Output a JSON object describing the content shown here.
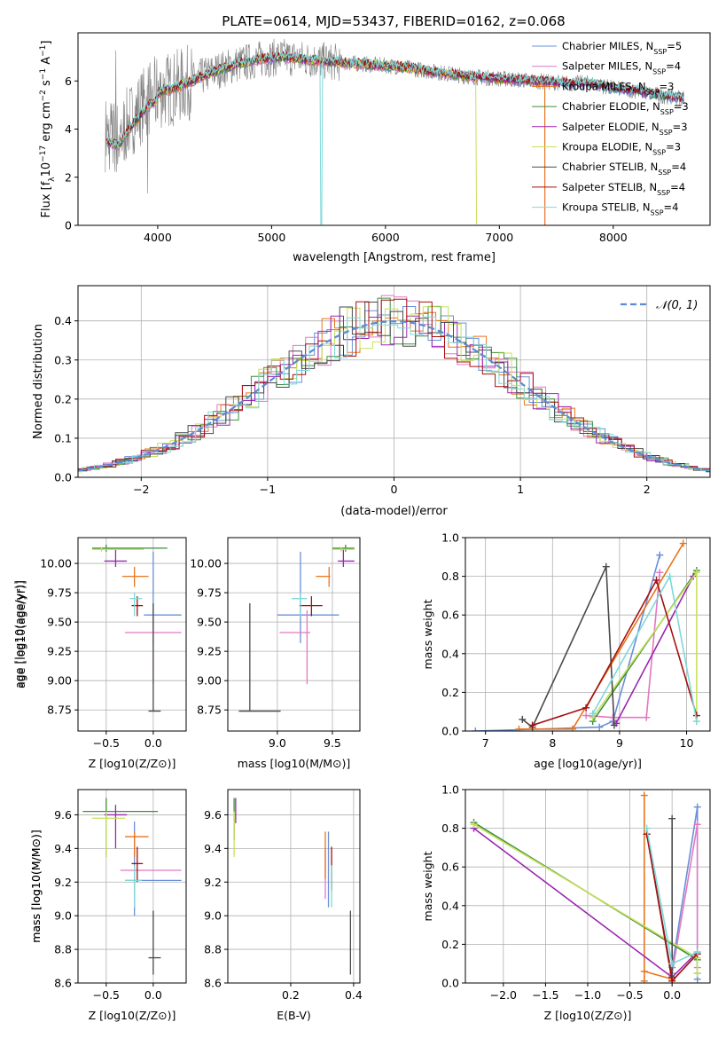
{
  "figure_title": "PLATE=0614, MJD=53437, FIBERID=0162, z=0.068",
  "models": [
    {
      "name": "Chabrier MILES",
      "nssp": "5",
      "color": "#6a8fd8"
    },
    {
      "name": "Salpeter MILES",
      "nssp": "4",
      "color": "#e377c2"
    },
    {
      "name": "Kroupa MILES",
      "nssp": "3",
      "color": "#e8741c"
    },
    {
      "name": "Chabrier ELODIE",
      "nssp": "3",
      "color": "#3e8e3e"
    },
    {
      "name": "Salpeter ELODIE",
      "nssp": "3",
      "color": "#9b27b0"
    },
    {
      "name": "Kroupa ELODIE",
      "nssp": "3",
      "color": "#c7e05a"
    },
    {
      "name": "Chabrier STELIB",
      "nssp": "4",
      "color": "#4a4a4a"
    },
    {
      "name": "Salpeter STELIB",
      "nssp": "4",
      "color": "#a50f0f"
    },
    {
      "name": "Kroupa STELIB",
      "nssp": "4",
      "color": "#7fd8d8"
    }
  ],
  "chart_data": [
    {
      "id": "spectrum",
      "type": "line",
      "xlabel": "wavelength [Angstrom, rest frame]",
      "ylabel": "Flux [f_λ10^-17 erg cm^-2 s^-1 A^-1]",
      "xlim": [
        3300,
        8850
      ],
      "ylim": [
        0,
        8
      ],
      "xticks": [
        4000,
        5000,
        6000,
        7000,
        8000
      ],
      "yticks": [
        0,
        2,
        4,
        6
      ],
      "data_color": "#808080",
      "continuum": {
        "x": [
          3550,
          3650,
          3750,
          3850,
          3950,
          4050,
          4150,
          4300,
          4500,
          4700,
          4900,
          5100,
          5300,
          5500,
          5800,
          6100,
          6400,
          6700,
          7000,
          7300,
          7600,
          7800,
          8000,
          8200,
          8400,
          8600
        ],
        "y": [
          3.8,
          3.6,
          4.3,
          4.9,
          5.4,
          5.6,
          5.7,
          6.0,
          6.4,
          6.7,
          6.9,
          7.0,
          6.9,
          6.8,
          6.7,
          6.6,
          6.4,
          6.2,
          6.1,
          6.0,
          5.9,
          5.9,
          5.7,
          5.6,
          5.4,
          5.3
        ]
      }
    },
    {
      "id": "residuals",
      "type": "histogram",
      "xlabel": "(data-model)/error",
      "ylabel": "Normed distribution",
      "xlim": [
        -2.5,
        2.5
      ],
      "ylim": [
        0,
        0.49
      ],
      "xticks": [
        -2,
        -1,
        0,
        1,
        2
      ],
      "yticks": [
        0.0,
        0.1,
        0.2,
        0.3,
        0.4
      ],
      "legend": "𝒩(0, 1)",
      "legend_position": "top-right",
      "grid": true,
      "bin_width": 0.1
    },
    {
      "id": "age-vs-z",
      "type": "errorbar",
      "xlabel": "Z [log10(Z/Z⊙)]",
      "ylabel": "age [log10(age/yr)]",
      "xlim": [
        -0.8,
        0.35
      ],
      "ylim": [
        8.57,
        10.22
      ],
      "xticks": [
        -0.5,
        0.0
      ],
      "yticks": [
        8.75,
        9.0,
        9.25,
        9.5,
        9.75,
        10.0
      ],
      "points": [
        {
          "m": 0,
          "x": 0.0,
          "xe": [
            -0.1,
            0.3
          ],
          "y": 9.56,
          "ye": [
            9.3,
            10.1
          ]
        },
        {
          "m": 1,
          "x": 0.0,
          "xe": [
            -0.3,
            0.3
          ],
          "y": 9.41,
          "ye": [
            8.97,
            9.6
          ]
        },
        {
          "m": 2,
          "x": -0.2,
          "xe": [
            -0.33,
            -0.05
          ],
          "y": 9.89,
          "ye": [
            9.8,
            9.97
          ]
        },
        {
          "m": 3,
          "x": -0.5,
          "xe": [
            -0.65,
            0.15
          ],
          "y": 10.13,
          "ye": [
            10.1,
            10.16
          ]
        },
        {
          "m": 4,
          "x": -0.4,
          "xe": [
            -0.52,
            -0.28
          ],
          "y": 10.02,
          "ye": [
            9.97,
            10.12
          ]
        },
        {
          "m": 5,
          "x": -0.55,
          "xe": [
            -0.65,
            -0.1
          ],
          "y": 10.12,
          "ye": [
            10.1,
            10.14
          ]
        },
        {
          "m": 6,
          "x": 0.0,
          "xe": [
            -0.05,
            0.08
          ],
          "y": 8.74,
          "ye": [
            8.74,
            9.66
          ]
        },
        {
          "m": 7,
          "x": -0.17,
          "xe": [
            -0.23,
            -0.11
          ],
          "y": 9.64,
          "ye": [
            9.55,
            9.72
          ]
        },
        {
          "m": 8,
          "x": -0.2,
          "xe": [
            -0.25,
            -0.12
          ],
          "y": 9.7,
          "ye": [
            9.55,
            9.75
          ]
        }
      ]
    },
    {
      "id": "age-vs-mass",
      "type": "errorbar",
      "xlabel": "mass [log10(M/M⊙)]",
      "ylabel": "",
      "xlim": [
        8.55,
        9.75
      ],
      "ylim": [
        8.57,
        10.22
      ],
      "xticks": [
        9.0,
        9.5
      ],
      "yticks": [
        8.75,
        9.0,
        9.25,
        9.5,
        9.75,
        10.0
      ],
      "points": [
        {
          "m": 0,
          "x": 9.21,
          "xe": [
            9.0,
            9.56
          ],
          "y": 9.56,
          "ye": [
            9.32,
            10.1
          ]
        },
        {
          "m": 1,
          "x": 9.27,
          "xe": [
            9.02,
            9.3
          ],
          "y": 9.41,
          "ye": [
            8.97,
            9.6
          ]
        },
        {
          "m": 2,
          "x": 9.47,
          "xe": [
            9.35,
            9.48
          ],
          "y": 9.89,
          "ye": [
            9.8,
            9.97
          ]
        },
        {
          "m": 3,
          "x": 9.62,
          "xe": [
            9.5,
            9.7
          ],
          "y": 10.13,
          "ye": [
            10.1,
            10.16
          ]
        },
        {
          "m": 4,
          "x": 9.6,
          "xe": [
            9.55,
            9.7
          ],
          "y": 10.02,
          "ye": [
            9.97,
            10.12
          ]
        },
        {
          "m": 5,
          "x": 9.58,
          "xe": [
            9.5,
            9.7
          ],
          "y": 10.12,
          "ye": [
            10.1,
            10.14
          ]
        },
        {
          "m": 6,
          "x": 8.75,
          "xe": [
            8.65,
            9.03
          ],
          "y": 8.74,
          "ye": [
            8.74,
            9.66
          ]
        },
        {
          "m": 7,
          "x": 9.31,
          "xe": [
            9.2,
            9.41
          ],
          "y": 9.64,
          "ye": [
            9.55,
            9.72
          ]
        },
        {
          "m": 8,
          "x": 9.21,
          "xe": [
            9.13,
            9.27
          ],
          "y": 9.7,
          "ye": [
            9.55,
            9.75
          ]
        }
      ]
    },
    {
      "id": "massweight-vs-age",
      "type": "line",
      "xlabel": "age [log10(age/yr)]",
      "ylabel": "mass weight",
      "xlim": [
        6.7,
        10.35
      ],
      "ylim": [
        0,
        1.0
      ],
      "xticks": [
        7,
        8,
        9,
        10
      ],
      "yticks": [
        0.0,
        0.2,
        0.4,
        0.6,
        0.8,
        1.0
      ],
      "grid": true,
      "series": [
        {
          "m": 0,
          "x": [
            6.85,
            8.7,
            8.9,
            9.6
          ],
          "y": [
            0.0,
            0.02,
            0.05,
            0.91
          ]
        },
        {
          "m": 1,
          "x": [
            8.5,
            8.9,
            9.4,
            9.6
          ],
          "y": [
            0.08,
            0.07,
            0.07,
            0.82
          ]
        },
        {
          "m": 2,
          "x": [
            7.5,
            8.3,
            9.95
          ],
          "y": [
            0.01,
            0.01,
            0.97
          ]
        },
        {
          "m": 3,
          "x": [
            8.6,
            10.15
          ],
          "y": [
            0.05,
            0.83
          ]
        },
        {
          "m": 4,
          "x": [
            8.95,
            10.1
          ],
          "y": [
            0.04,
            0.8
          ]
        },
        {
          "m": 5,
          "x": [
            8.6,
            10.15,
            10.15
          ],
          "y": [
            0.07,
            0.82,
            0.05
          ]
        },
        {
          "m": 6,
          "x": [
            7.55,
            7.7,
            8.8,
            8.92
          ],
          "y": [
            0.06,
            0.02,
            0.85,
            0.03
          ]
        },
        {
          "m": 7,
          "x": [
            7.7,
            8.5,
            9.55,
            10.15
          ],
          "y": [
            0.03,
            0.12,
            0.78,
            0.08
          ]
        },
        {
          "m": 8,
          "x": [
            8.6,
            9.75,
            10.15
          ],
          "y": [
            0.09,
            0.8,
            0.05
          ]
        }
      ]
    },
    {
      "id": "mass-vs-z",
      "type": "errorbar",
      "xlabel": "Z [log10(Z/Z⊙)]",
      "ylabel": "mass [log10(M/M⊙)]",
      "xlim": [
        -0.8,
        0.35
      ],
      "ylim": [
        8.6,
        9.75
      ],
      "xticks": [
        -0.5,
        0.0
      ],
      "yticks": [
        8.6,
        8.8,
        9.0,
        9.2,
        9.4,
        9.6
      ],
      "points": [
        {
          "m": 0,
          "x": -0.2,
          "xe": [
            -0.3,
            0.3
          ],
          "y": 9.21,
          "ye": [
            9.0,
            9.56
          ]
        },
        {
          "m": 1,
          "x": -0.2,
          "xe": [
            -0.35,
            0.3
          ],
          "y": 9.27,
          "ye": [
            9.05,
            9.3
          ]
        },
        {
          "m": 2,
          "x": -0.2,
          "xe": [
            -0.3,
            -0.05
          ],
          "y": 9.47,
          "ye": [
            9.35,
            9.5
          ]
        },
        {
          "m": 3,
          "x": -0.5,
          "xe": [
            -0.75,
            0.05
          ],
          "y": 9.62,
          "ye": [
            9.35,
            9.7
          ]
        },
        {
          "m": 4,
          "x": -0.4,
          "xe": [
            -0.52,
            -0.28
          ],
          "y": 9.6,
          "ye": [
            9.4,
            9.66
          ]
        },
        {
          "m": 5,
          "x": -0.5,
          "xe": [
            -0.65,
            -0.3
          ],
          "y": 9.58,
          "ye": [
            9.35,
            9.62
          ]
        },
        {
          "m": 6,
          "x": 0.0,
          "xe": [
            -0.05,
            0.08
          ],
          "y": 8.75,
          "ye": [
            8.65,
            9.03
          ]
        },
        {
          "m": 7,
          "x": -0.17,
          "xe": [
            -0.23,
            -0.11
          ],
          "y": 9.31,
          "ye": [
            9.2,
            9.41
          ]
        },
        {
          "m": 8,
          "x": -0.2,
          "xe": [
            -0.3,
            -0.12
          ],
          "y": 9.21,
          "ye": [
            9.05,
            9.3
          ]
        }
      ]
    },
    {
      "id": "mass-vs-ebv",
      "type": "errorbar",
      "xlabel": "E(B-V)",
      "ylabel": "",
      "xlim": [
        0.0,
        0.42
      ],
      "ylim": [
        8.6,
        9.75
      ],
      "xticks": [
        0.2,
        0.4
      ],
      "yticks": [
        8.6,
        8.8,
        9.0,
        9.2,
        9.4,
        9.6
      ],
      "points": [
        {
          "m": 0,
          "x": 0.32,
          "xe": [
            0.32,
            0.32
          ],
          "y": 9.21,
          "ye": [
            9.05,
            9.5
          ]
        },
        {
          "m": 1,
          "x": 0.31,
          "xe": [
            0.31,
            0.31
          ],
          "y": 9.27,
          "ye": [
            9.1,
            9.4
          ]
        },
        {
          "m": 2,
          "x": 0.31,
          "xe": [
            0.31,
            0.31
          ],
          "y": 9.4,
          "ye": [
            9.22,
            9.5
          ]
        },
        {
          "m": 3,
          "x": 0.02,
          "xe": [
            0.02,
            0.02
          ],
          "y": 9.62,
          "ye": [
            9.45,
            9.7
          ]
        },
        {
          "m": 4,
          "x": 0.025,
          "xe": [
            0.025,
            0.025
          ],
          "y": 9.62,
          "ye": [
            9.55,
            9.7
          ]
        },
        {
          "m": 5,
          "x": 0.02,
          "xe": [
            0.02,
            0.02
          ],
          "y": 9.5,
          "ye": [
            9.35,
            9.62
          ]
        },
        {
          "m": 6,
          "x": 0.39,
          "xe": [
            0.39,
            0.39
          ],
          "y": 8.8,
          "ye": [
            8.65,
            9.03
          ]
        },
        {
          "m": 7,
          "x": 0.33,
          "xe": [
            0.33,
            0.33
          ],
          "y": 9.31,
          "ye": [
            9.15,
            9.41
          ]
        },
        {
          "m": 8,
          "x": 0.33,
          "xe": [
            0.33,
            0.33
          ],
          "y": 9.21,
          "ye": [
            9.05,
            9.3
          ]
        }
      ]
    },
    {
      "id": "massweight-vs-z",
      "type": "line",
      "xlabel": "Z [log10(Z/Z⊙)]",
      "ylabel": "mass weight",
      "xlim": [
        -2.45,
        0.45
      ],
      "ylim": [
        0,
        1.0
      ],
      "xticks": [
        -2.0,
        -1.5,
        -1.0,
        -0.5,
        0.0
      ],
      "yticks": [
        0.0,
        0.2,
        0.4,
        0.6,
        0.8,
        1.0
      ],
      "grid": true,
      "series": [
        {
          "m": 0,
          "x": [
            -0.0,
            0.3,
            0.3
          ],
          "y": [
            0.08,
            0.91,
            0.02
          ]
        },
        {
          "m": 1,
          "x": [
            -0.0,
            0.3,
            0.3
          ],
          "y": [
            0.05,
            0.82,
            0.08
          ]
        },
        {
          "m": 2,
          "x": [
            -0.33,
            -0.33,
            -0.33,
            0.0
          ],
          "y": [
            0.97,
            0.01,
            0.06,
            0.02
          ]
        },
        {
          "m": 3,
          "x": [
            -2.35,
            0.3,
            0.3
          ],
          "y": [
            0.83,
            0.12,
            0.05
          ]
        },
        {
          "m": 4,
          "x": [
            -2.35,
            0.0,
            0.3
          ],
          "y": [
            0.8,
            0.03,
            0.16
          ]
        },
        {
          "m": 5,
          "x": [
            -2.35,
            0.3,
            0.3
          ],
          "y": [
            0.82,
            0.13,
            0.05
          ]
        },
        {
          "m": 6,
          "x": [
            0.0,
            0.0,
            -0.3
          ],
          "y": [
            0.85,
            0.03,
            0.77
          ]
        },
        {
          "m": 7,
          "x": [
            -0.3,
            0.0,
            0.3
          ],
          "y": [
            0.77,
            0.01,
            0.15
          ]
        },
        {
          "m": 8,
          "x": [
            -0.3,
            0.0,
            0.3
          ],
          "y": [
            0.8,
            0.1,
            0.16
          ]
        }
      ]
    }
  ]
}
